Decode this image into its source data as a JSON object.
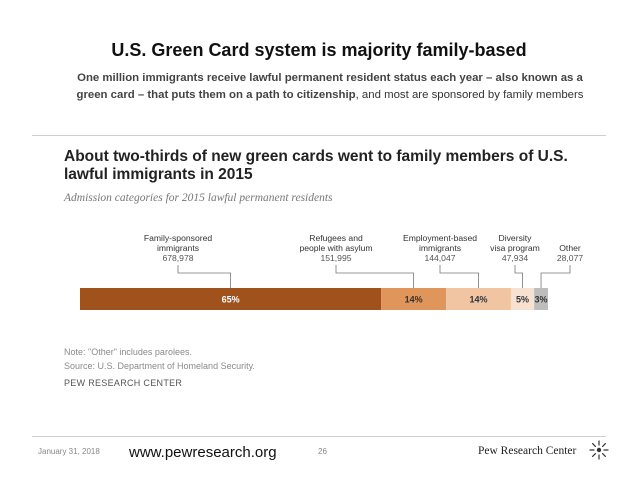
{
  "slide": {
    "title": "U.S. Green Card system is majority family-based",
    "subtitle_bold": "One million immigrants receive lawful permanent resident status each year – also known as a green card – that puts them on a path to citizenship",
    "subtitle_rest": ", and most are sponsored by family members"
  },
  "chart_data": {
    "type": "bar",
    "orientation": "horizontal-stacked",
    "title": "About two-thirds of new green cards went to family members of U.S. lawful immigrants in 2015",
    "subtitle": "Admission categories for 2015 lawful permanent residents",
    "categories": [
      {
        "label_lines": [
          "Family-sponsored",
          "immigrants"
        ],
        "count": "678,978",
        "percent": 65,
        "percent_label": "65%",
        "color": "#a0521d"
      },
      {
        "label_lines": [
          "Refugees and",
          "people with asylum"
        ],
        "count": "151,995",
        "percent": 14,
        "percent_label": "14%",
        "color": "#e0955a"
      },
      {
        "label_lines": [
          "Employment-based",
          "immigrants"
        ],
        "count": "144,047",
        "percent": 14,
        "percent_label": "14%",
        "color": "#f2c5a2"
      },
      {
        "label_lines": [
          "Diversity",
          "visa program"
        ],
        "count": "47,934",
        "percent": 5,
        "percent_label": "5%",
        "color": "#f7e2d2"
      },
      {
        "label_lines": [
          "Other"
        ],
        "count": "28,077",
        "percent": 3,
        "percent_label": "3%",
        "color": "#bdbdbd"
      }
    ],
    "notes": [
      "Note: \"Other\" includes parolees.",
      "Source: U.S. Department of Homeland Security."
    ],
    "source_org": "PEW RESEARCH CENTER"
  },
  "footer": {
    "date": "January 31, 2018",
    "url": "www.pewresearch.org",
    "page": "26",
    "logo": "Pew Research Center"
  },
  "colors": {
    "label_dark": "#333333",
    "label_count": "#555555",
    "bar_text_light": "#ffffff",
    "bar_text_dark": "#333333"
  }
}
